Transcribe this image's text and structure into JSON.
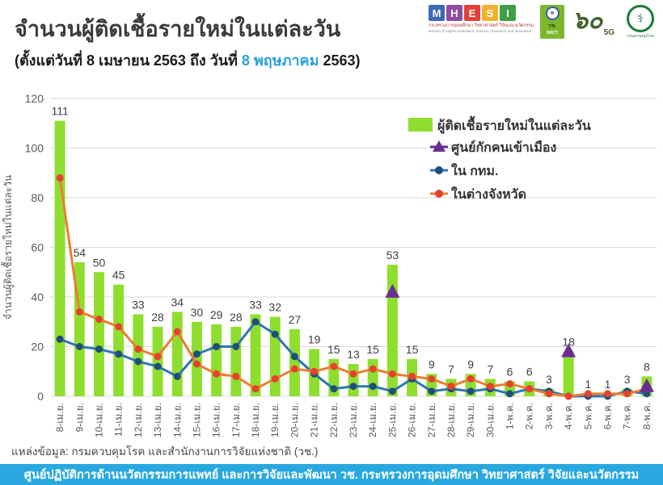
{
  "header": {
    "title": "จำนวนผู้ติดเชื้อรายใหม่ในแต่ละวัน",
    "subtitle_prefix": "(ตั้งแต่วันที่ 8 เมษายน 2563 ถึง วันที่ ",
    "subtitle_highlight": "8 พฤษภาคม",
    "subtitle_suffix": " 2563)",
    "highlight_color": "#2b9fd8"
  },
  "logos": {
    "mhesi": {
      "letters": [
        {
          "ch": "M",
          "color": "#3e68b0"
        },
        {
          "ch": "H",
          "color": "#8e4d9f"
        },
        {
          "ch": "E",
          "color": "#e04038"
        },
        {
          "ch": "S",
          "color": "#f2b231"
        },
        {
          "ch": "I",
          "color": "#419e45"
        }
      ],
      "thai_line": "กระทรวงการอุดมศึกษา วิทยาศาสตร์ วิจัยและนวัตกรรม",
      "eng_line": "Ministry of Higher Education, Science, Research and Innovation"
    },
    "nrct": {
      "thai": "วช.",
      "eng": "NRCT",
      "color": "#7cb82f"
    },
    "sixty_5g": {
      "numerals": "๖๐",
      "label": "5G",
      "color": "#42622f"
    },
    "ddc": {
      "name": "กรมควบคุมโรค",
      "glyph": "⚕",
      "color": "#1b7b3c"
    }
  },
  "chart_data": {
    "type": "bar",
    "title": "จำนวนผู้ติดเชื้อรายใหม่ในแต่ละวัน",
    "xlabel": "",
    "ylabel": "จำนวนผู้ติดเชื้อรายใหม่ในแต่ละวัน",
    "ylim": [
      0,
      120
    ],
    "yticks": [
      0,
      20,
      40,
      60,
      80,
      100,
      120
    ],
    "grid": true,
    "grid_color": "#d9d9d9",
    "legend_position": "top-right",
    "categories": [
      "8-เม.ย.",
      "9-เม.ย.",
      "10-เม.ย.",
      "11-เม.ย.",
      "12-เม.ย.",
      "13-เม.ย.",
      "14-เม.ย.",
      "15-เม.ย.",
      "16-เม.ย.",
      "17-เม.ย.",
      "18-เม.ย.",
      "19-เม.ย.",
      "20-เม.ย.",
      "21-เม.ย.",
      "22-เม.ย.",
      "23-เม.ย.",
      "24-เม.ย.",
      "25-เม.ย.",
      "26-เม.ย.",
      "27-เม.ย.",
      "28-เม.ย.",
      "29-เม.ย.",
      "30-เม.ย.",
      "1-พ.ค.",
      "2-พ.ค.",
      "3-พ.ค.",
      "4-พ.ค.",
      "5-พ.ค.",
      "6-พ.ค.",
      "7-พ.ค.",
      "8-พ.ค."
    ],
    "series": [
      {
        "name": "ผู้ติดเชื้อรายใหม่ในแต่ละวัน",
        "type": "bar",
        "color": "#8fde2f",
        "show_labels": true,
        "values": [
          111,
          54,
          50,
          45,
          33,
          28,
          34,
          30,
          29,
          28,
          33,
          32,
          27,
          19,
          15,
          13,
          15,
          53,
          15,
          9,
          7,
          9,
          7,
          6,
          6,
          3,
          18,
          1,
          1,
          3,
          8
        ]
      },
      {
        "name": "ศูนย์กักคนเข้าเมือง",
        "type": "triangle",
        "color": "#6a2d91",
        "values": [
          null,
          null,
          null,
          null,
          null,
          null,
          null,
          null,
          null,
          null,
          null,
          null,
          null,
          null,
          null,
          null,
          null,
          42,
          null,
          null,
          null,
          null,
          null,
          null,
          null,
          null,
          18,
          null,
          null,
          null,
          4
        ]
      },
      {
        "name": "ใน กทม.",
        "type": "line",
        "color": "#2e74b5",
        "marker_color": "#1f4e79",
        "values": [
          23,
          20,
          19,
          17,
          14,
          12,
          8,
          17,
          20,
          20,
          30,
          25,
          16,
          9,
          3,
          4,
          4,
          2,
          7,
          2,
          3,
          2,
          3,
          1,
          3,
          2,
          0,
          0,
          0,
          2,
          1
        ]
      },
      {
        "name": "ในต่างจังหวัด",
        "type": "line",
        "color": "#ed7d31",
        "marker_color": "#e8402e",
        "values": [
          88,
          34,
          31,
          28,
          19,
          16,
          26,
          13,
          9,
          8,
          3,
          7,
          11,
          10,
          12,
          9,
          11,
          9,
          8,
          7,
          4,
          7,
          4,
          5,
          3,
          1,
          0,
          1,
          1,
          1,
          3
        ]
      }
    ],
    "label_color": "#404040",
    "axis_text_color": "#595959"
  },
  "footer": {
    "source": "แหล่งข้อมูล: กรมควบคุมโรค และสำนักงานการวิจัยแห่งชาติ (วช.)"
  },
  "bottom_bar": {
    "text": "ศูนย์ปฏิบัติการด้านนวัตกรรมการแพทย์ และการวิจัยและพัฒนา  วช.   กระทรวงการอุดมศึกษา วิทยาศาสตร์ วิจัยและนวัตกรรม",
    "color": "#29a8df"
  }
}
